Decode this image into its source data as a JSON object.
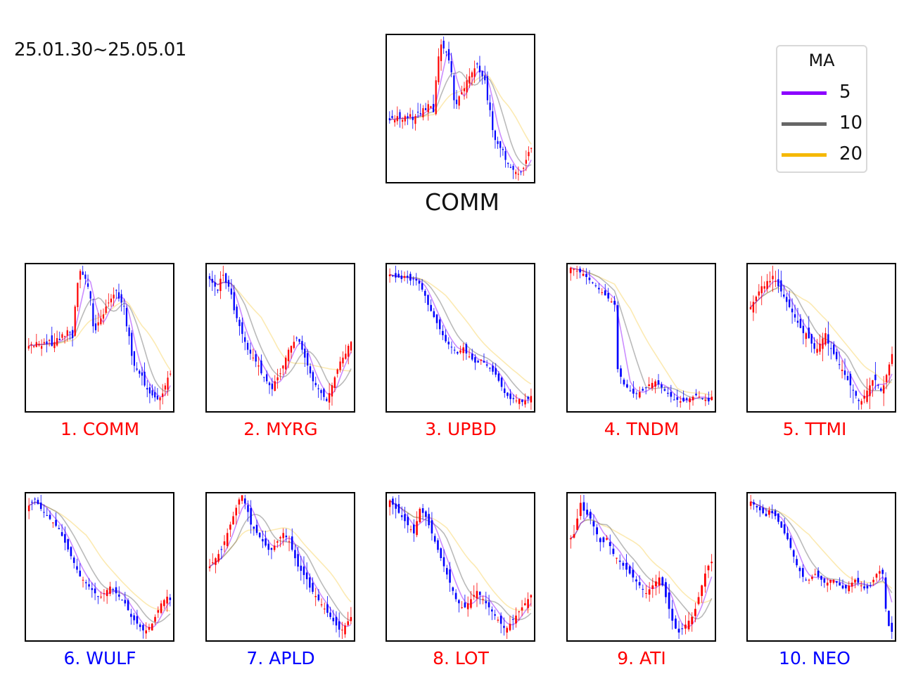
{
  "date_range": "25.01.30~25.05.01",
  "legend": {
    "title": "MA",
    "items": [
      {
        "label": "5",
        "color": "#8b00ff"
      },
      {
        "label": "10",
        "color": "#666666"
      },
      {
        "label": "20",
        "color": "#f5b800"
      }
    ]
  },
  "colors": {
    "up": "#ff0000",
    "down": "#0000ff",
    "label_up": "#ff0000",
    "label_down": "#0000ff"
  },
  "chart_data": {
    "type": "candlestick-small-multiples",
    "main": {
      "title": "COMM",
      "closes": [
        50,
        51,
        50,
        52,
        51,
        50,
        52,
        51,
        53,
        50,
        52,
        54,
        53,
        56,
        55,
        58,
        57,
        54,
        70,
        82,
        88,
        86,
        84,
        80,
        74,
        60,
        58,
        62,
        64,
        66,
        70,
        72,
        74,
        76,
        78,
        74,
        72,
        70,
        60,
        55,
        45,
        40,
        38,
        36,
        35,
        30,
        28,
        26,
        25,
        24,
        23,
        24,
        26,
        30,
        34,
        36
      ]
    },
    "panels": [
      {
        "label": "1. COMM",
        "dir": "up",
        "closes": [
          50,
          51,
          50,
          52,
          51,
          50,
          52,
          51,
          53,
          50,
          52,
          54,
          53,
          56,
          55,
          58,
          57,
          54,
          70,
          82,
          88,
          86,
          84,
          80,
          74,
          60,
          58,
          62,
          64,
          66,
          70,
          72,
          74,
          76,
          78,
          74,
          72,
          70,
          60,
          55,
          45,
          40,
          38,
          36,
          35,
          30,
          28,
          26,
          25,
          24,
          23,
          24,
          26,
          30,
          34,
          36
        ]
      },
      {
        "label": "2. MYRG",
        "dir": "up",
        "closes": [
          88,
          86,
          84,
          82,
          88,
          90,
          86,
          84,
          80,
          72,
          68,
          64,
          60,
          56,
          52,
          50,
          48,
          46,
          44,
          40,
          38,
          36,
          34,
          32,
          36,
          38,
          40,
          44,
          48,
          52,
          54,
          56,
          58,
          56,
          52,
          48,
          44,
          40,
          36,
          34,
          32,
          30,
          28,
          26,
          30,
          34,
          38,
          42,
          46,
          48,
          50,
          54,
          56
        ]
      },
      {
        "label": "3. UPBD",
        "dir": "up",
        "closes": [
          92,
          91,
          90,
          90,
          89,
          91,
          90,
          88,
          89,
          88,
          86,
          82,
          78,
          72,
          68,
          64,
          60,
          56,
          52,
          48,
          46,
          44,
          42,
          40,
          42,
          44,
          40,
          38,
          36,
          34,
          34,
          36,
          34,
          32,
          30,
          28,
          26,
          22,
          18,
          14,
          12,
          10,
          10,
          9,
          10,
          8,
          9,
          10,
          12
        ]
      },
      {
        "label": "4. TNDM",
        "dir": "up",
        "closes": [
          96,
          95,
          94,
          93,
          92,
          90,
          88,
          86,
          84,
          82,
          80,
          78,
          76,
          74,
          72,
          30,
          25,
          20,
          18,
          16,
          14,
          14,
          15,
          16,
          18,
          20,
          21,
          22,
          20,
          18,
          16,
          14,
          12,
          10,
          10,
          9,
          9,
          10,
          11,
          12,
          13,
          12,
          11,
          10,
          9,
          12
        ]
      },
      {
        "label": "5. TTMI",
        "dir": "up",
        "closes": [
          60,
          62,
          64,
          66,
          68,
          68,
          70,
          70,
          72,
          70,
          68,
          66,
          64,
          62,
          60,
          58,
          56,
          54,
          52,
          50,
          50,
          48,
          46,
          44,
          44,
          46,
          48,
          50,
          46,
          44,
          42,
          40,
          38,
          36,
          34,
          32,
          30,
          28,
          26,
          24,
          24,
          26,
          28,
          30,
          32,
          32,
          30,
          28,
          30,
          34,
          38,
          42
        ]
      },
      {
        "label": "6. WULF",
        "dir": "down",
        "closes": [
          84,
          86,
          88,
          85,
          82,
          80,
          78,
          76,
          74,
          72,
          70,
          66,
          62,
          58,
          54,
          50,
          46,
          42,
          40,
          38,
          36,
          34,
          32,
          30,
          30,
          32,
          34,
          36,
          34,
          32,
          30,
          28,
          26,
          22,
          18,
          16,
          14,
          12,
          10,
          10,
          12,
          14,
          18,
          22,
          26,
          28,
          30,
          28
        ]
      },
      {
        "label": "7. APLD",
        "dir": "down",
        "closes": [
          40,
          42,
          44,
          46,
          48,
          52,
          56,
          60,
          64,
          68,
          72,
          74,
          70,
          66,
          60,
          58,
          56,
          54,
          52,
          50,
          48,
          48,
          50,
          52,
          54,
          56,
          54,
          52,
          48,
          44,
          40,
          38,
          36,
          34,
          30,
          28,
          26,
          24,
          22,
          20,
          18,
          16,
          14,
          12,
          10,
          10,
          12,
          14,
          16
        ]
      },
      {
        "label": "8. LOT",
        "dir": "up",
        "closes": [
          70,
          68,
          66,
          64,
          62,
          60,
          58,
          56,
          54,
          60,
          66,
          64,
          62,
          58,
          54,
          50,
          46,
          42,
          38,
          34,
          30,
          26,
          22,
          20,
          18,
          18,
          20,
          22,
          24,
          26,
          24,
          22,
          20,
          18,
          16,
          14,
          12,
          10,
          8,
          8,
          10,
          12,
          14,
          16,
          18,
          20,
          22,
          24
        ]
      },
      {
        "label": "9. ATI",
        "dir": "up",
        "closes": [
          70,
          72,
          80,
          88,
          84,
          82,
          80,
          76,
          72,
          68,
          68,
          70,
          66,
          62,
          60,
          58,
          56,
          54,
          52,
          50,
          48,
          46,
          44,
          42,
          44,
          46,
          48,
          50,
          46,
          40,
          34,
          28,
          24,
          22,
          24,
          26,
          28,
          30,
          34,
          40,
          46,
          52,
          56,
          58
        ]
      },
      {
        "label": "10. NEO",
        "dir": "down",
        "closes": [
          94,
          92,
          90,
          88,
          86,
          84,
          88,
          86,
          84,
          80,
          76,
          72,
          68,
          62,
          56,
          50,
          46,
          42,
          40,
          40,
          42,
          44,
          42,
          40,
          38,
          38,
          40,
          40,
          38,
          36,
          34,
          34,
          36,
          38,
          40,
          38,
          36,
          34,
          34,
          36,
          40,
          44,
          46,
          44,
          20,
          8,
          4
        ]
      }
    ]
  }
}
